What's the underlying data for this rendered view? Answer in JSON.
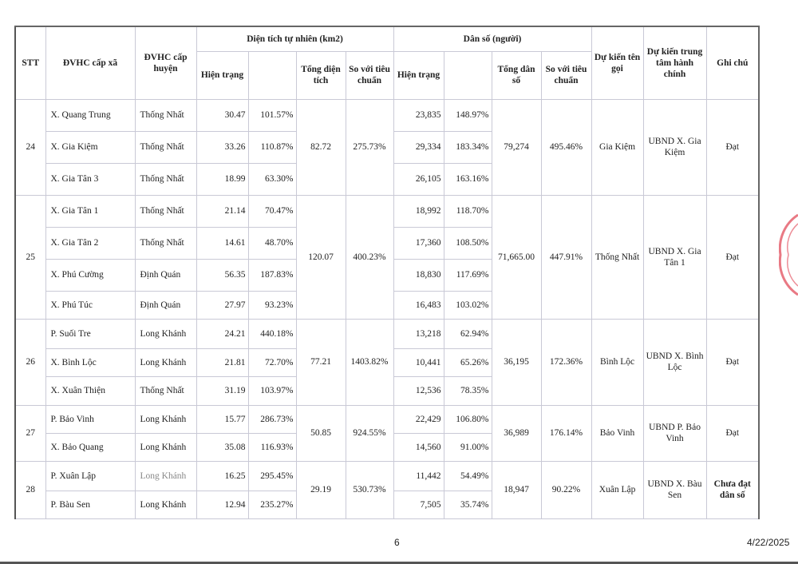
{
  "header": {
    "stt": "STT",
    "commune": "ĐVHC cấp xã",
    "district": "ĐVHC cấp huyện",
    "area_group": "Diện tích tự nhiên (km2)",
    "pop_group": "Dân số (người)",
    "current": "Hiện trạng",
    "total_area": "Tổng diện tích",
    "vs_standard": "So với tiêu chuẩn",
    "total_pop": "Tổng dân số",
    "proposed_name": "Dự kiến tên gọi",
    "proposed_center": "Dự kiến trung tâm hành chính",
    "note": "Ghi chú"
  },
  "groups": [
    {
      "stt": "24",
      "total_area": "82.72",
      "area_pct": "275.73%",
      "total_pop": "79,274",
      "pop_pct": "495.46%",
      "name": "Gia Kiệm",
      "center": "UBND X. Gia Kiệm",
      "note": "Đạt",
      "note_bold": false,
      "rows": [
        {
          "commune": "X. Quang Trung",
          "district": "Thống Nhất",
          "area": "30.47",
          "area_pct": "101.57%",
          "pop": "23,835",
          "pop_pct": "148.97%"
        },
        {
          "commune": "X. Gia Kiệm",
          "district": "Thống Nhất",
          "area": "33.26",
          "area_pct": "110.87%",
          "pop": "29,334",
          "pop_pct": "183.34%"
        },
        {
          "commune": "X. Gia Tân 3",
          "district": "Thống Nhất",
          "area": "18.99",
          "area_pct": "63.30%",
          "pop": "26,105",
          "pop_pct": "163.16%"
        }
      ]
    },
    {
      "stt": "25",
      "total_area": "120.07",
      "area_pct": "400.23%",
      "total_pop": "71,665.00",
      "pop_pct": "447.91%",
      "name": "Thống Nhất",
      "center": "UBND X. Gia Tân 1",
      "note": "Đạt",
      "note_bold": false,
      "rows": [
        {
          "commune": "X. Gia Tân 1",
          "district": "Thống Nhất",
          "area": "21.14",
          "area_pct": "70.47%",
          "pop": "18,992",
          "pop_pct": "118.70%"
        },
        {
          "commune": "X. Gia Tân 2",
          "district": "Thống Nhất",
          "area": "14.61",
          "area_pct": "48.70%",
          "pop": "17,360",
          "pop_pct": "108.50%"
        },
        {
          "commune": "X. Phú Cường",
          "district": "Định Quán",
          "area": "56.35",
          "area_pct": "187.83%",
          "pop": "18,830",
          "pop_pct": "117.69%"
        },
        {
          "commune": "X. Phú Túc",
          "district": "Định Quán",
          "area": "27.97",
          "area_pct": "93.23%",
          "pop": "16,483",
          "pop_pct": "103.02%"
        }
      ]
    },
    {
      "stt": "26",
      "total_area": "77.21",
      "area_pct": "1403.82%",
      "total_pop": "36,195",
      "pop_pct": "172.36%",
      "name": "Bình Lộc",
      "center": "UBND X. Bình Lộc",
      "note": "Đạt",
      "note_bold": false,
      "rows": [
        {
          "commune": "P. Suối Tre",
          "district": "Long Khánh",
          "area": "24.21",
          "area_pct": "440.18%",
          "pop": "13,218",
          "pop_pct": "62.94%"
        },
        {
          "commune": "X. Bình Lộc",
          "district": "Long Khánh",
          "area": "21.81",
          "area_pct": "72.70%",
          "pop": "10,441",
          "pop_pct": "65.26%"
        },
        {
          "commune": "X. Xuân Thiện",
          "district": "Thống Nhất",
          "area": "31.19",
          "area_pct": "103.97%",
          "pop": "12,536",
          "pop_pct": "78.35%"
        }
      ]
    },
    {
      "stt": "27",
      "total_area": "50.85",
      "area_pct": "924.55%",
      "total_pop": "36,989",
      "pop_pct": "176.14%",
      "name": "Bảo Vinh",
      "center": "UBND P. Bảo Vinh",
      "note": "Đạt",
      "note_bold": false,
      "rows": [
        {
          "commune": "P. Bảo Vinh",
          "district": "Long Khánh",
          "area": "15.77",
          "area_pct": "286.73%",
          "pop": "22,429",
          "pop_pct": "106.80%"
        },
        {
          "commune": "X. Bảo Quang",
          "district": "Long Khánh",
          "area": "35.08",
          "area_pct": "116.93%",
          "pop": "14,560",
          "pop_pct": "91.00%"
        }
      ]
    },
    {
      "stt": "28",
      "total_area": "29.19",
      "area_pct": "530.73%",
      "total_pop": "18,947",
      "pop_pct": "90.22%",
      "name": "Xuân Lập",
      "center": "UBND X. Bàu Sen",
      "note": "Chưa đạt dân số",
      "note_bold": true,
      "rows": [
        {
          "commune": "P. Xuân Lập",
          "district": "Long Khánh",
          "area": "16.25",
          "area_pct": "295.45%",
          "pop": "11,442",
          "pop_pct": "54.49%"
        },
        {
          "commune": "P. Bàu Sen",
          "district": "Long Khánh",
          "area": "12.94",
          "area_pct": "235.27%",
          "pop": "7,505",
          "pop_pct": "35.74%"
        }
      ]
    }
  ],
  "footer": {
    "page_number": "6",
    "date": "4/22/2025"
  },
  "colors": {
    "stamp": "#e04050",
    "grid": "#c9c9d6"
  }
}
